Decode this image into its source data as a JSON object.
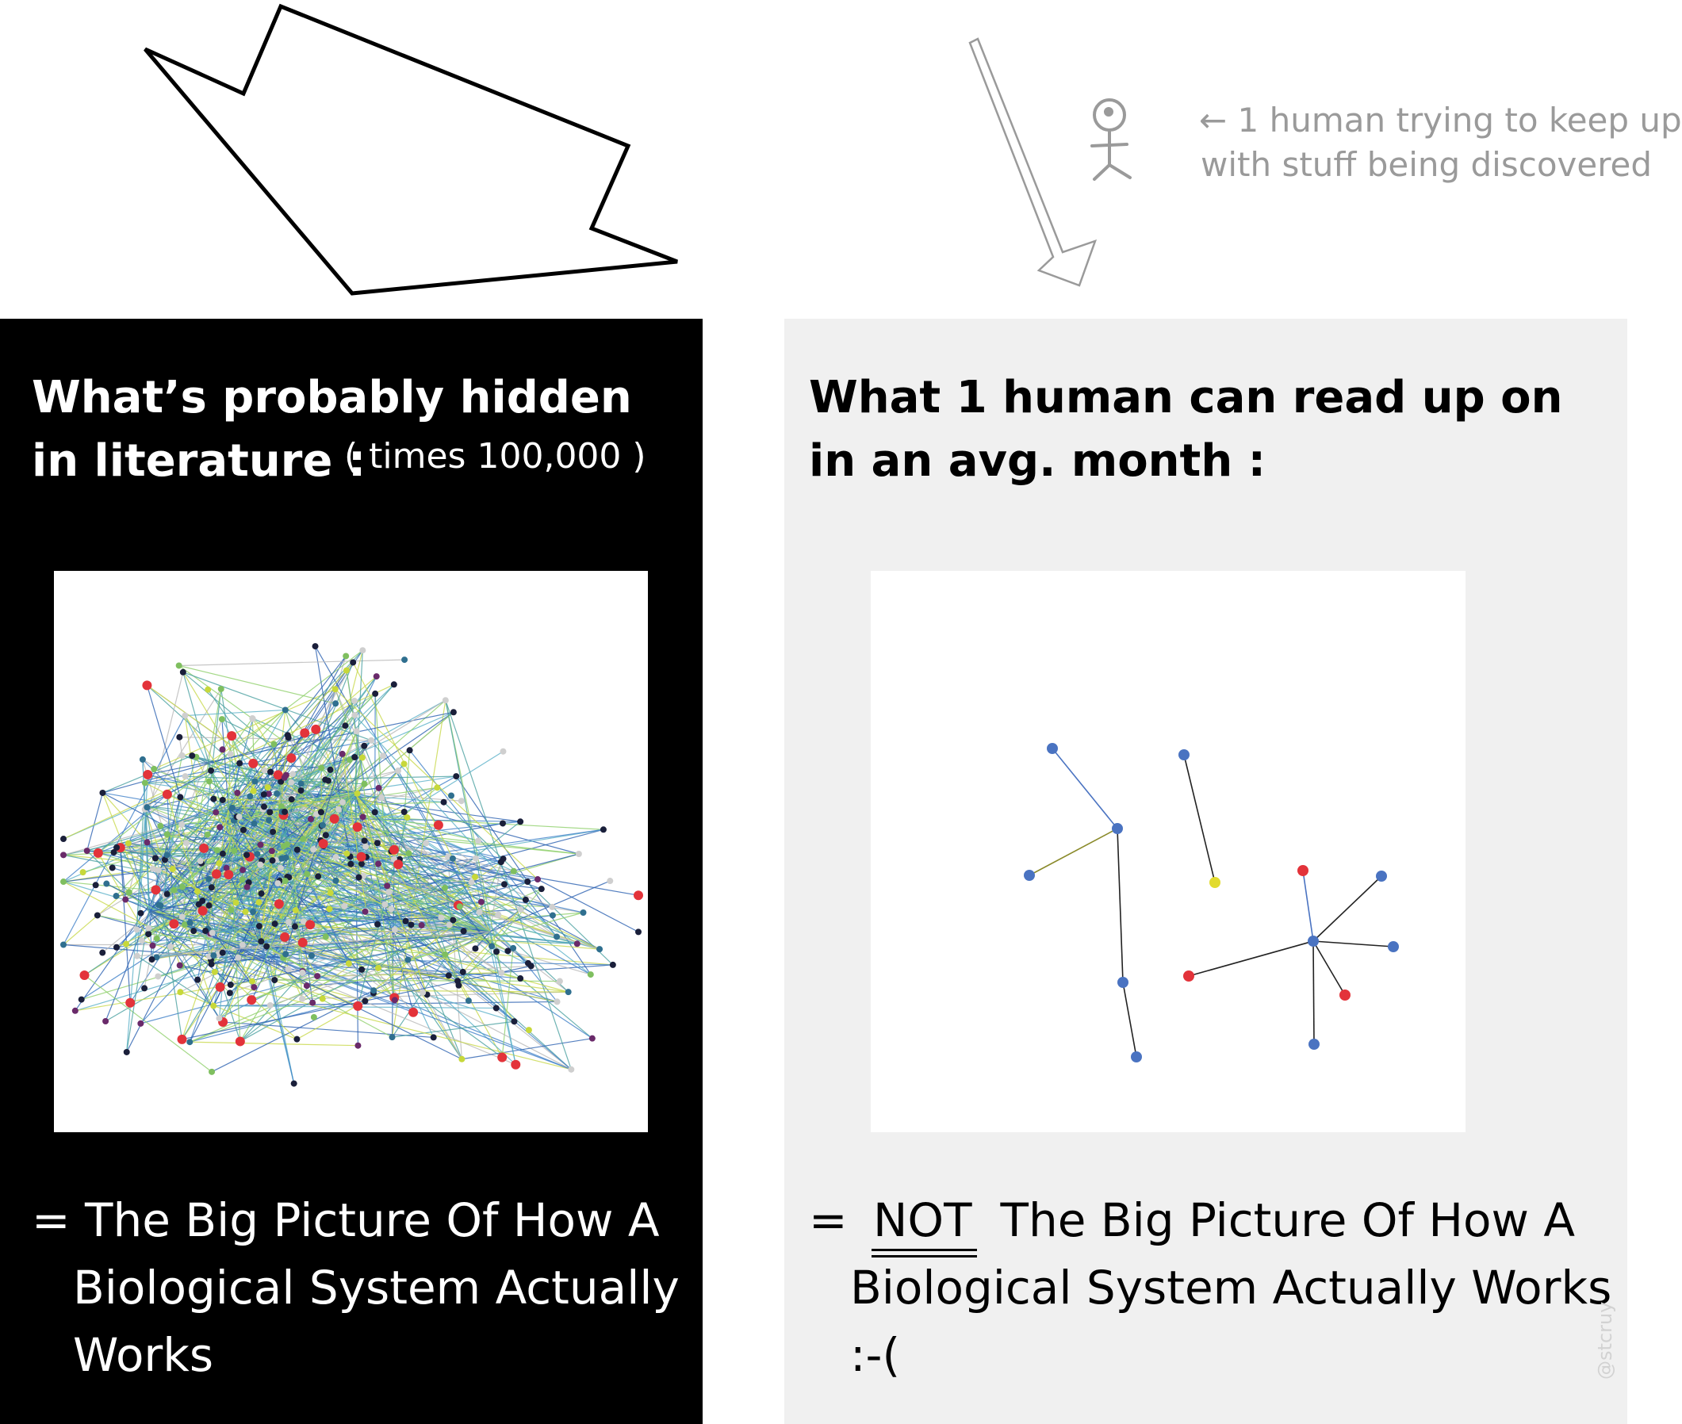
{
  "colors": {
    "left_panel_bg": "#000000",
    "right_panel_bg": "#f0f0f0",
    "caption_gray": "#9a9a9a",
    "node_blue": "#4a73c1",
    "node_red": "#e3333a",
    "node_yellow": "#e2db2e"
  },
  "top": {
    "human_caption": [
      "← 1 human trying to keep up",
      "with stuff being discovered"
    ]
  },
  "left_panel": {
    "heading_lines": [
      "What’s probably hidden",
      "in literature :"
    ],
    "multiplier": "( times 100,000 )",
    "conclusion_lines": [
      "= The Big Picture Of How A",
      "Biological System Actually",
      "Works"
    ]
  },
  "right_panel": {
    "heading_lines": [
      "What 1 human can read up on",
      "in an avg. month :"
    ],
    "conclusion": {
      "prefix": "=",
      "emphasis": "NOT",
      "line1_rest": "The Big Picture Of How A",
      "line2": "Biological System Actually Works",
      "line3": ":-("
    }
  },
  "signature": "@stcruy"
}
